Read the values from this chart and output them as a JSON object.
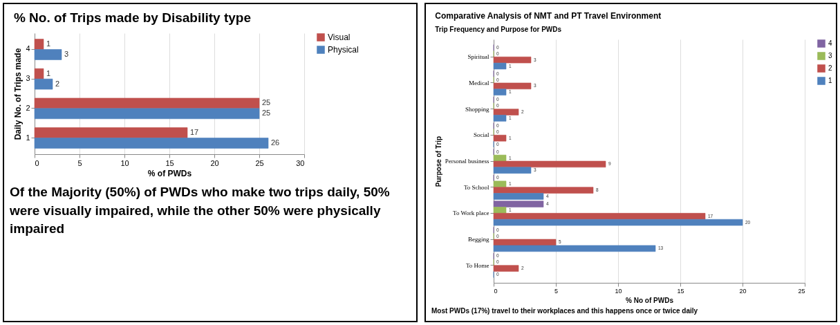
{
  "chart_data": [
    {
      "type": "bar",
      "orientation": "horizontal",
      "title": "% No. of Trips made by Disability type",
      "xlabel": "% of PWDs",
      "ylabel": "Daily No. of Trips made",
      "categories": [
        "4",
        "3",
        "2",
        "1"
      ],
      "series": [
        {
          "name": "Visual",
          "color": "#c0504d",
          "values": [
            1,
            1,
            25,
            17
          ]
        },
        {
          "name": "Physical",
          "color": "#4f81bd",
          "values": [
            3,
            2,
            25,
            26
          ]
        }
      ],
      "xlim": [
        0,
        30
      ],
      "xticks": [
        0,
        5,
        10,
        15,
        20,
        25,
        30
      ],
      "grid": "x",
      "legend": "right",
      "data_labels": true,
      "annotations": [
        "Of the Majority (50%) of PWDs who make two trips daily, 50% were visually impaired, while the other 50% were physically impaired"
      ]
    },
    {
      "type": "bar",
      "orientation": "horizontal",
      "title": "Comparative Analysis of NMT and PT Travel Environment",
      "subtitle": "Trip Frequency and Purpose for PWDs",
      "xlabel": "% No of PWDs",
      "ylabel": "Purpose of Trip",
      "categories": [
        "Spiritual",
        "Medical",
        "Shopping",
        "Social",
        "Personal business",
        "To School",
        "To Work place",
        "Begging",
        "To Home"
      ],
      "series": [
        {
          "name": "4",
          "color": "#8064a2",
          "values": [
            0,
            0,
            0,
            0,
            0,
            0,
            4,
            0,
            0
          ]
        },
        {
          "name": "3",
          "color": "#9bbb59",
          "values": [
            0,
            0,
            0,
            0,
            1,
            1,
            1,
            0,
            0
          ]
        },
        {
          "name": "2",
          "color": "#c0504d",
          "values": [
            3,
            3,
            2,
            1,
            9,
            8,
            17,
            5,
            2
          ]
        },
        {
          "name": "1",
          "color": "#4f81bd",
          "values": [
            1,
            1,
            1,
            0,
            3,
            4,
            20,
            13,
            0
          ]
        }
      ],
      "xlim": [
        0,
        25
      ],
      "xticks": [
        0,
        5,
        10,
        15,
        20,
        25
      ],
      "grid": "x",
      "legend": "right",
      "data_labels": true,
      "annotations": [
        "Most PWDs (17%) travel to their workplaces and this happens once or twice daily"
      ]
    }
  ]
}
